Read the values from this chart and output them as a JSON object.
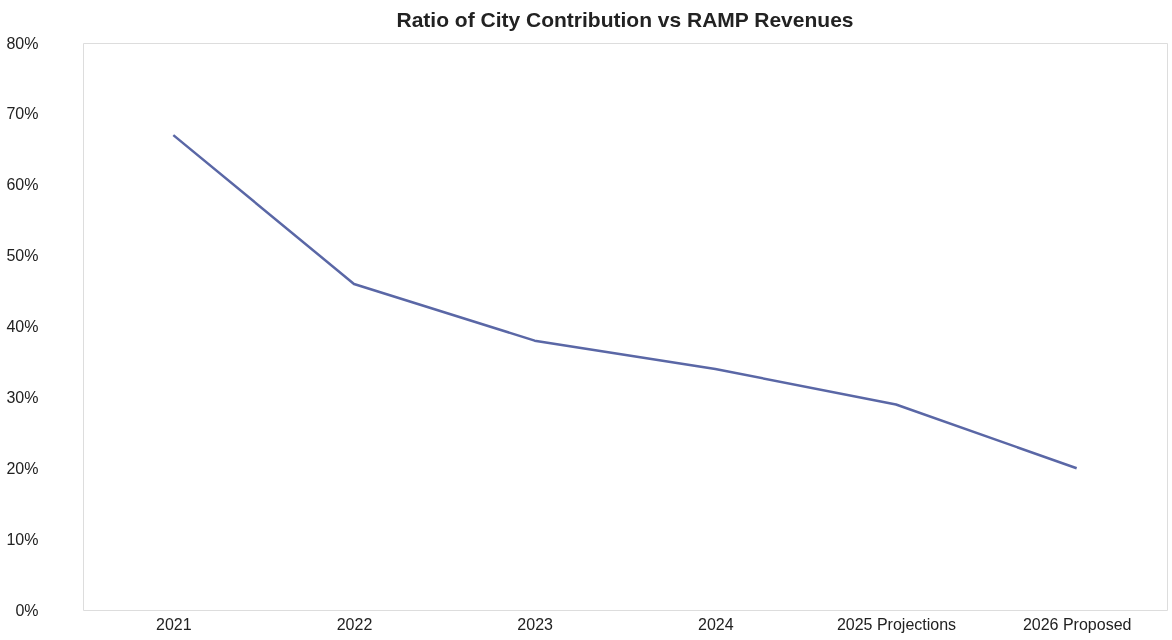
{
  "chart_data": {
    "type": "line",
    "title": "Ratio of City Contribution vs RAMP Revenues",
    "categories": [
      "2021",
      "2022",
      "2023",
      "2024",
      "2025 Projections",
      "2026 Proposed"
    ],
    "series": [
      {
        "color": "#5a67a6",
        "values": [
          67,
          46,
          38,
          34,
          29,
          20
        ]
      }
    ],
    "ylim": [
      0,
      80
    ],
    "yticks": [
      {
        "value": 0,
        "label": "0%"
      },
      {
        "value": 10,
        "label": "10%"
      },
      {
        "value": 20,
        "label": "20%"
      },
      {
        "value": 30,
        "label": "30%"
      },
      {
        "value": 40,
        "label": "40%"
      },
      {
        "value": 50,
        "label": "50%"
      },
      {
        "value": 60,
        "label": "60%"
      },
      {
        "value": 70,
        "label": "70%"
      },
      {
        "value": 80,
        "label": "80%"
      }
    ],
    "grid": false,
    "legend": false,
    "marker": "none",
    "line_style": "solid"
  }
}
